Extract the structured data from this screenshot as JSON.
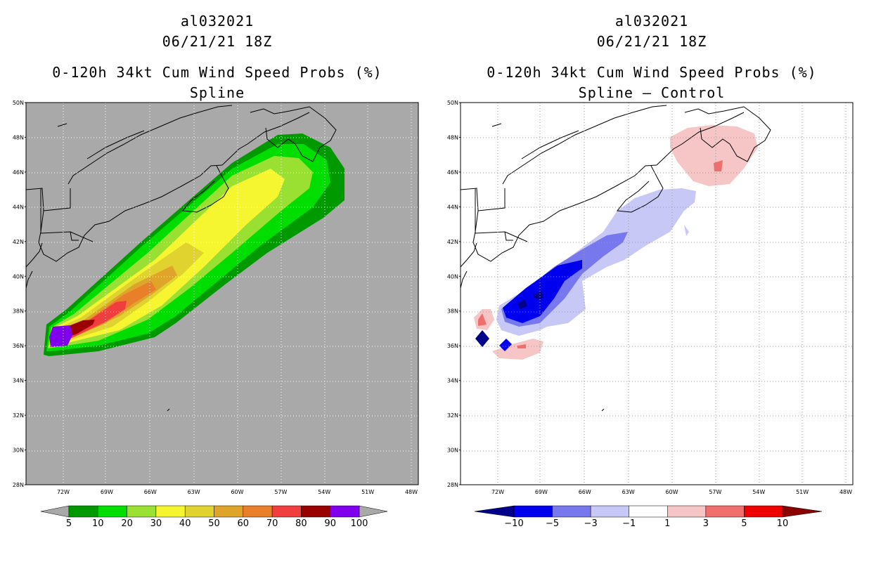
{
  "left": {
    "title_storm": "al032021",
    "title_time": "06/21/21 18Z",
    "title_product": "0-120h 34kt Cum Wind Speed Probs (%)",
    "title_field": "Spline",
    "background_color": "#a9a9a9",
    "colorbar": {
      "colors": [
        "#009900",
        "#00dd00",
        "#99e033",
        "#f5f530",
        "#e0d32f",
        "#dfa52b",
        "#ea7f2a",
        "#f03d3d",
        "#990000",
        "#8000ee"
      ],
      "labels": [
        "5",
        "10",
        "20",
        "30",
        "40",
        "50",
        "60",
        "70",
        "80",
        "90",
        "100"
      ]
    }
  },
  "right": {
    "title_storm": "al032021",
    "title_time": "06/21/21 18Z",
    "title_product": "0-120h 34kt Cum Wind Speed Probs (%)",
    "title_field": "Spline – Control",
    "background_color": "#ffffff",
    "colorbar": {
      "colors": [
        "#00008b",
        "#0000ee",
        "#7777ee",
        "#c8c8f6",
        "#ffffff",
        "#f6c6c6",
        "#f06e6e",
        "#ee0000",
        "#8b0000"
      ],
      "labels": [
        "−10",
        "−5",
        "−3",
        "−1",
        "1",
        "3",
        "5",
        "10"
      ]
    }
  },
  "axes": {
    "lat_labels": [
      "50N",
      "48N",
      "46N",
      "44N",
      "42N",
      "40N",
      "38N",
      "36N",
      "34N",
      "32N",
      "30N",
      "28N"
    ],
    "lon_labels": [
      "72W",
      "69W",
      "66W",
      "63W",
      "60W",
      "57W",
      "54W",
      "51W",
      "48W"
    ]
  }
}
